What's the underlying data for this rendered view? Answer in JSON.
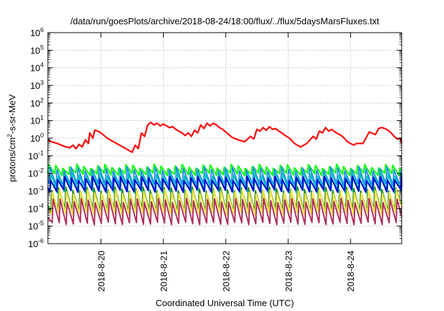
{
  "chart_data": {
    "type": "line",
    "title": "/data/run/goesPlots/archive/2018-08-24/18:00/flux/../flux/5daysMarsFluxes.txt",
    "xlabel": "Coordinated Universal Time (UTC)",
    "ylabel": {
      "pre": "protons/cm",
      "sup": "2",
      "post": "-s-sr-MeV"
    },
    "yscale": "log",
    "ylim_exp": [
      -6,
      6
    ],
    "y_tick_exponents": [
      -6,
      -5,
      -4,
      -3,
      -2,
      -1,
      0,
      1,
      2,
      3,
      4,
      5,
      6
    ],
    "y_tick_base": "10",
    "xlim_days": [
      19.15,
      24.82
    ],
    "x_ticks": [
      {
        "day": 20,
        "label": "2018-8-20"
      },
      {
        "day": 21,
        "label": "2018-8-21"
      },
      {
        "day": 22,
        "label": "2018-8-22"
      },
      {
        "day": 23,
        "label": "2018-8-23"
      },
      {
        "day": 24,
        "label": "2018-8-24"
      }
    ],
    "grid": true,
    "series": [
      {
        "color": "#ff0000",
        "x": [
          19.15,
          19.2,
          19.3,
          19.4,
          19.5,
          19.55,
          19.6,
          19.65,
          19.7,
          19.75,
          19.8,
          19.82,
          19.87,
          19.9,
          19.95,
          20.0,
          20.05,
          20.1,
          20.2,
          20.3,
          20.4,
          20.5,
          20.55,
          20.6,
          20.65,
          20.7,
          20.75,
          20.8,
          20.85,
          20.9,
          20.95,
          21.0,
          21.05,
          21.1,
          21.15,
          21.2,
          21.3,
          21.35,
          21.4,
          21.45,
          21.5,
          21.55,
          21.6,
          21.65,
          21.7,
          21.75,
          21.8,
          21.85,
          21.9,
          21.95,
          22.0,
          22.05,
          22.1,
          22.2,
          22.3,
          22.4,
          22.45,
          22.5,
          22.55,
          22.6,
          22.65,
          22.7,
          22.75,
          22.8,
          22.85,
          22.9,
          22.95,
          23.0,
          23.05,
          23.1,
          23.2,
          23.3,
          23.4,
          23.45,
          23.5,
          23.55,
          23.6,
          23.65,
          23.7,
          23.75,
          23.8,
          23.85,
          23.9,
          23.95,
          24.0,
          24.05,
          24.1,
          24.2,
          24.3,
          24.4,
          24.45,
          24.5,
          24.55,
          24.6,
          24.65,
          24.7,
          24.75,
          24.8,
          24.82
        ],
        "y_exp": [
          -0.1,
          -0.2,
          -0.3,
          -0.45,
          -0.55,
          -0.4,
          -0.6,
          -0.35,
          -0.5,
          -0.1,
          -0.3,
          0.3,
          0.0,
          0.45,
          0.4,
          0.3,
          0.15,
          0.0,
          -0.2,
          -0.4,
          -0.6,
          -0.8,
          -0.4,
          -0.6,
          0.3,
          0.1,
          0.75,
          0.9,
          0.75,
          0.85,
          0.7,
          0.8,
          0.7,
          0.6,
          0.65,
          0.5,
          0.3,
          0.15,
          0.3,
          0.1,
          0.45,
          0.3,
          0.75,
          0.55,
          0.85,
          0.7,
          0.85,
          0.75,
          0.6,
          0.5,
          0.35,
          0.2,
          0.05,
          -0.1,
          -0.2,
          0.1,
          -0.05,
          0.5,
          0.4,
          0.6,
          0.45,
          0.65,
          0.5,
          0.55,
          0.4,
          0.3,
          0.15,
          0.05,
          -0.1,
          -0.3,
          -0.5,
          -0.3,
          0.1,
          -0.05,
          0.4,
          0.3,
          0.6,
          0.4,
          0.5,
          0.35,
          0.25,
          0.15,
          0.0,
          -0.2,
          -0.3,
          -0.4,
          -0.3,
          -0.3,
          0.35,
          0.2,
          0.55,
          0.6,
          0.55,
          0.45,
          0.3,
          0.1,
          -0.05,
          0.0,
          -0.3
        ]
      },
      {
        "color": "#00ff00",
        "period": 0.1125,
        "peak_exp": -1.6,
        "trough_exp": -2.05,
        "phase": 0.0
      },
      {
        "color": "#1e90ff",
        "period": 0.1125,
        "peak_exp": -1.75,
        "trough_exp": -2.65,
        "phase": 0.02
      },
      {
        "color": "#00bfbf",
        "period": 0.1125,
        "peak_exp": -2.05,
        "trough_exp": -3.05,
        "phase": 0.04
      },
      {
        "color": "#0000cd",
        "period": 0.1125,
        "peak_exp": -2.3,
        "trough_exp": -3.0,
        "phase": 0.03
      },
      {
        "color": "#228b22",
        "period": 0.1125,
        "peak_exp": -2.9,
        "trough_exp": -4.1,
        "phase": 0.05
      },
      {
        "color": "#f0e442",
        "period": 0.1125,
        "peak_exp": -3.05,
        "trough_exp": -4.3,
        "phase": 0.06
      },
      {
        "color": "#b03060",
        "period": 0.1125,
        "peak_exp": -3.55,
        "trough_exp": -4.85,
        "phase": 0.07
      }
    ]
  }
}
